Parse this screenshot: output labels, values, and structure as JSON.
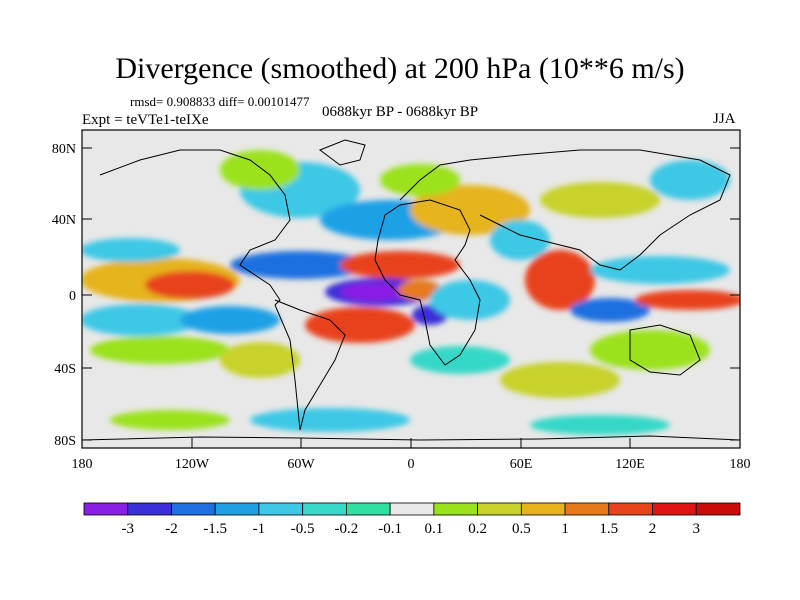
{
  "title": "Divergence (smoothed) at 200 hPa (10**6 m/s)",
  "stats": "rmsd= 0.908833 diff= 0.00101477",
  "experiment": "Expt = teVTe1-teIXe",
  "period": "0688kyr BP - 0688kyr BP",
  "season": "JJA",
  "lat_labels": [
    "80N",
    "40N",
    "0",
    "40S",
    "80S"
  ],
  "lon_labels": [
    "180",
    "120W",
    "60W",
    "0",
    "60E",
    "120E",
    "180"
  ],
  "colorbar": {
    "labels": [
      "-3",
      "-2",
      "-1.5",
      "-1",
      "-0.5",
      "-0.2",
      "-0.1",
      "0.1",
      "0.2",
      "0.5",
      "1",
      "1.5",
      "2",
      "3"
    ],
    "colors": [
      "#8a1fe6",
      "#3a2fd8",
      "#1f6fe0",
      "#1fa0e6",
      "#3cc8e6",
      "#36d8c8",
      "#2fe0a0",
      "#e8e8e8",
      "#9be21a",
      "#c8d22a",
      "#e6b41a",
      "#e67a1a",
      "#e8421a",
      "#e01414",
      "#cc0a0a"
    ]
  },
  "colors": {
    "land_line": "#000000",
    "frame": "#000000",
    "neutral": "#e8e8e8"
  }
}
